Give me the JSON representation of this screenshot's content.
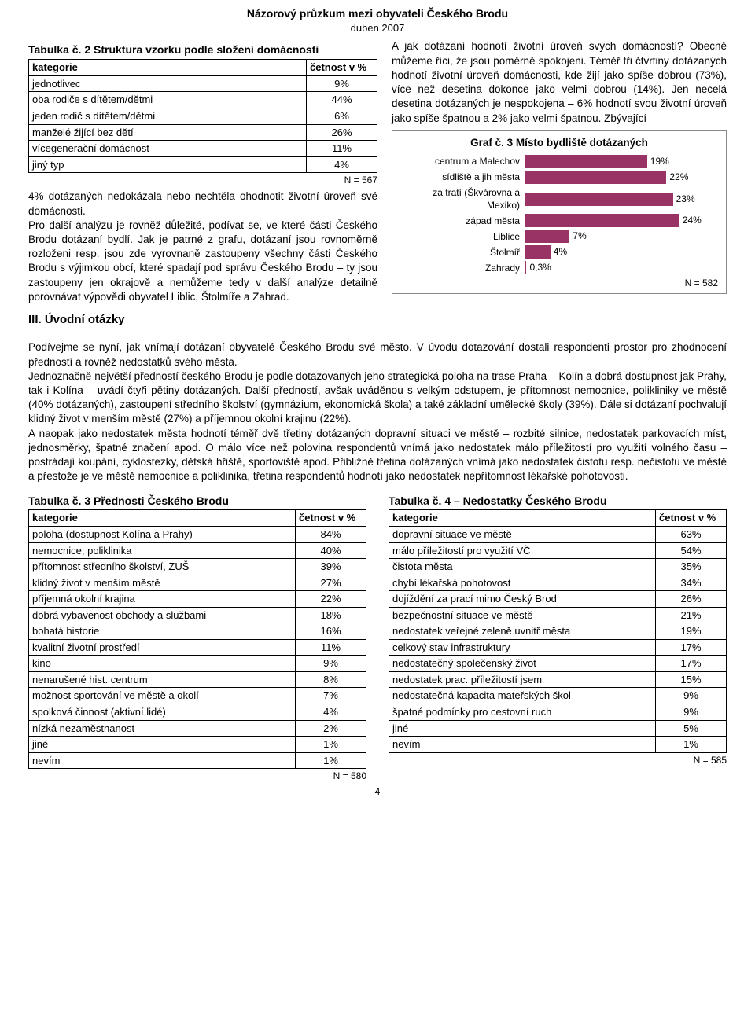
{
  "header": {
    "title": "Názorový průzkum mezi obyvateli Českého Brodu",
    "subtitle": "duben 2007"
  },
  "table2": {
    "title": "Tabulka č. 2 Struktura vzorku podle složení domácnosti",
    "col1": "kategorie",
    "col2": "četnost v %",
    "rows": [
      [
        "jednotlivec",
        "9%"
      ],
      [
        "oba rodiče s dítětem/dětmi",
        "44%"
      ],
      [
        "jeden rodič s dítětem/dětmi",
        "6%"
      ],
      [
        "manželé žijící bez dětí",
        "26%"
      ],
      [
        "vícegenerační domácnost",
        "11%"
      ],
      [
        "jiný typ",
        "4%"
      ]
    ],
    "note": "N = 567"
  },
  "para_left": "4% dotázaných nedokázala nebo nechtěla ohodnotit životní úroveň své domácnosti.\nPro další analýzu je rovněž důležité, podívat se, ve které části Českého Brodu dotázaní bydlí. Jak je patrné z grafu, dotázaní jsou rovnoměrně rozloženi resp. jsou zde vyrovnaně zastoupeny všechny části Českého Brodu s výjimkou obcí, které spadají pod správu Českého Brodu – ty jsou zastoupeny jen okrajově a nemůžeme tedy v další analýze detailně porovnávat výpovědi obyvatel Liblic, Štolmíře a Zahrad.",
  "section3_h": "III.  Úvodní otázky",
  "para_right_top": "A jak dotázaní hodnotí životní úroveň svých domácností? Obecně můžeme říci, že jsou poměrně spokojeni. Téměř tři čtvrtiny dotázaných hodnotí životní úroveň domácnosti, kde žijí jako spíše dobrou (73%), více než desetina dokonce jako velmi dobrou (14%). Jen necelá desetina dotázaných je nespokojena – 6% hodnotí svou životní úroveň jako spíše špatnou a 2% jako velmi špatnou. Zbývající",
  "chart3": {
    "type": "bar-horizontal",
    "title": "Graf č. 3 Místo bydliště dotázaných",
    "x_max": 30,
    "bar_color": "#993366",
    "background": "#ffffff",
    "label_fontsize": 12,
    "rows": [
      {
        "label": "centrum a Malechov",
        "value": 19,
        "text": "19%"
      },
      {
        "label": "sídliště a jih města",
        "value": 22,
        "text": "22%"
      },
      {
        "label": "za tratí (Škvárovna a Mexiko)",
        "value": 23,
        "text": "23%"
      },
      {
        "label": "západ města",
        "value": 24,
        "text": "24%"
      },
      {
        "label": "Liblice",
        "value": 7,
        "text": "7%"
      },
      {
        "label": "Štolmíř",
        "value": 4,
        "text": "4%"
      },
      {
        "label": "Zahrady",
        "value": 0.3,
        "text": "0,3%"
      }
    ],
    "note": "N = 582"
  },
  "para_mid": "Podívejme se nyní, jak vnímají dotázaní obyvatelé Českého Brodu své město. V úvodu dotazování dostali respondenti prostor pro zhodnocení předností a rovněž nedostatků svého města.\nJednoznačně největší předností českého Brodu je podle dotazovaných jeho strategická poloha na trase Praha – Kolín a dobrá dostupnost jak Prahy, tak i Kolína – uvádí čtyři pětiny dotázaných. Další předností, avšak uváděnou s velkým odstupem, je přítomnost nemocnice, polikliniky ve městě (40% dotázaných), zastoupení středního školství (gymnázium, ekonomická škola) a také základní umělecké školy (39%). Dále si dotázaní pochvalují klidný život v menším městě (27%) a příjemnou okolní krajinu (22%).\nA naopak jako nedostatek města hodnotí téměř dvě třetiny dotázaných dopravní situaci ve městě – rozbité silnice, nedostatek parkovacích míst, jednosměrky, špatné značení apod. O málo více než polovina respondentů vnímá jako nedostatek málo příležitostí pro využití volného času – postrádají koupání, cyklostezky, dětská hřiště, sportoviště apod. Přibližně třetina dotázaných vnímá jako nedostatek čistotu resp. nečistotu ve městě a přestože je ve městě nemocnice a poliklinika, třetina respondentů hodnotí jako nedostatek nepřítomnost lékařské pohotovosti.",
  "table3": {
    "title": "Tabulka č. 3 Přednosti Českého Brodu",
    "col1": "kategorie",
    "col2": "četnost v %",
    "rows": [
      [
        "poloha (dostupnost Kolína a Prahy)",
        "84%"
      ],
      [
        "nemocnice, poliklinika",
        "40%"
      ],
      [
        "přítomnost středního školství, ZUŠ",
        "39%"
      ],
      [
        "klidný život v menším městě",
        "27%"
      ],
      [
        "příjemná okolní krajina",
        "22%"
      ],
      [
        "dobrá vybavenost obchody a službami",
        "18%"
      ],
      [
        "bohatá historie",
        "16%"
      ],
      [
        "kvalitní životní prostředí",
        "11%"
      ],
      [
        "kino",
        "9%"
      ],
      [
        "nenarušené hist. centrum",
        "8%"
      ],
      [
        "možnost sportování ve městě a okolí",
        "7%"
      ],
      [
        "spolková činnost (aktivní lidé)",
        "4%"
      ],
      [
        "nízká nezaměstnanost",
        "2%"
      ],
      [
        "jiné",
        "1%"
      ],
      [
        "nevím",
        "1%"
      ]
    ],
    "note": "N = 580"
  },
  "table4": {
    "title": "Tabulka č. 4 – Nedostatky Českého Brodu",
    "col1": "kategorie",
    "col2": "četnost v %",
    "rows": [
      [
        "dopravní situace ve městě",
        "63%"
      ],
      [
        "málo příležitostí pro využití VČ",
        "54%"
      ],
      [
        "čistota města",
        "35%"
      ],
      [
        "chybí lékařská pohotovost",
        "34%"
      ],
      [
        "dojíždění za prací mimo Český Brod",
        "26%"
      ],
      [
        "bezpečnostní situace ve městě",
        "21%"
      ],
      [
        "nedostatek veřejné zeleně uvnitř města",
        "19%"
      ],
      [
        "celkový stav infrastruktury",
        "17%"
      ],
      [
        "nedostatečný společenský život",
        "17%"
      ],
      [
        "nedostatek prac. příležitostí jsem",
        "15%"
      ],
      [
        "nedostatečná kapacita mateřských škol",
        "9%"
      ],
      [
        "špatné podmínky pro cestovní ruch",
        "9%"
      ],
      [
        "jiné",
        "5%"
      ],
      [
        "nevím",
        "1%"
      ]
    ],
    "note": "N = 585"
  },
  "page_number": "4"
}
